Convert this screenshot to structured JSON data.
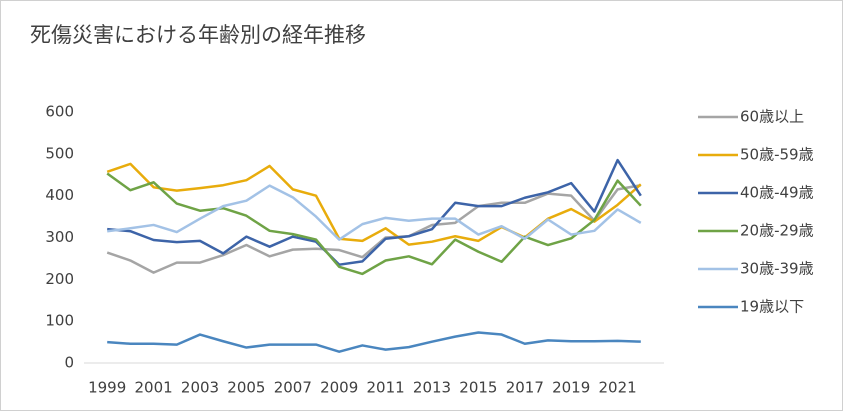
{
  "chart_data": {
    "type": "line",
    "title": "死傷災害における年齢別の経年推移",
    "x": [
      1999,
      2000,
      2001,
      2002,
      2003,
      2004,
      2005,
      2006,
      2007,
      2008,
      2009,
      2010,
      2011,
      2012,
      2013,
      2014,
      2015,
      2016,
      2017,
      2018,
      2019,
      2020,
      2021,
      2022
    ],
    "xlim": [
      1998,
      2023
    ],
    "xticks": [
      1999,
      2001,
      2003,
      2005,
      2007,
      2009,
      2011,
      2013,
      2015,
      2017,
      2019,
      2021
    ],
    "ylim": [
      0,
      600
    ],
    "yticks": [
      0,
      100,
      200,
      300,
      400,
      500,
      600
    ],
    "grid": false,
    "legend": "right",
    "series": [
      {
        "name": "60歳以上",
        "color": "#a5a5a5",
        "values": [
          264,
          245,
          216,
          240,
          240,
          258,
          282,
          255,
          271,
          273,
          270,
          253,
          300,
          303,
          330,
          335,
          375,
          383,
          383,
          405,
          400,
          340,
          415,
          425
        ]
      },
      {
        "name": "50歳-59歳",
        "color": "#e8ac0c",
        "values": [
          457,
          476,
          420,
          412,
          418,
          425,
          437,
          471,
          415,
          400,
          297,
          292,
          322,
          283,
          290,
          303,
          292,
          325,
          300,
          345,
          368,
          338,
          378,
          427
        ]
      },
      {
        "name": "40歳-49歳",
        "color": "#3d64a8",
        "values": [
          320,
          315,
          294,
          289,
          292,
          262,
          302,
          278,
          302,
          290,
          235,
          243,
          297,
          303,
          320,
          383,
          375,
          375,
          395,
          408,
          430,
          362,
          485,
          400
        ]
      },
      {
        "name": "20歳-29歳",
        "color": "#6fa346",
        "values": [
          453,
          413,
          432,
          381,
          364,
          370,
          352,
          316,
          308,
          295,
          230,
          213,
          245,
          255,
          236,
          295,
          266,
          242,
          302,
          282,
          298,
          342,
          436,
          376
        ]
      },
      {
        "name": "30歳-39歳",
        "color": "#a3c2e6",
        "values": [
          315,
          322,
          330,
          313,
          345,
          375,
          388,
          424,
          396,
          350,
          295,
          332,
          347,
          340,
          345,
          345,
          307,
          327,
          297,
          343,
          307,
          316,
          367,
          335
        ]
      },
      {
        "name": "19歳以下",
        "color": "#4a86bf",
        "values": [
          50,
          46,
          46,
          44,
          68,
          52,
          37,
          44,
          44,
          44,
          27,
          42,
          32,
          38,
          51,
          63,
          73,
          68,
          46,
          54,
          52,
          52,
          53,
          51
        ]
      }
    ]
  }
}
